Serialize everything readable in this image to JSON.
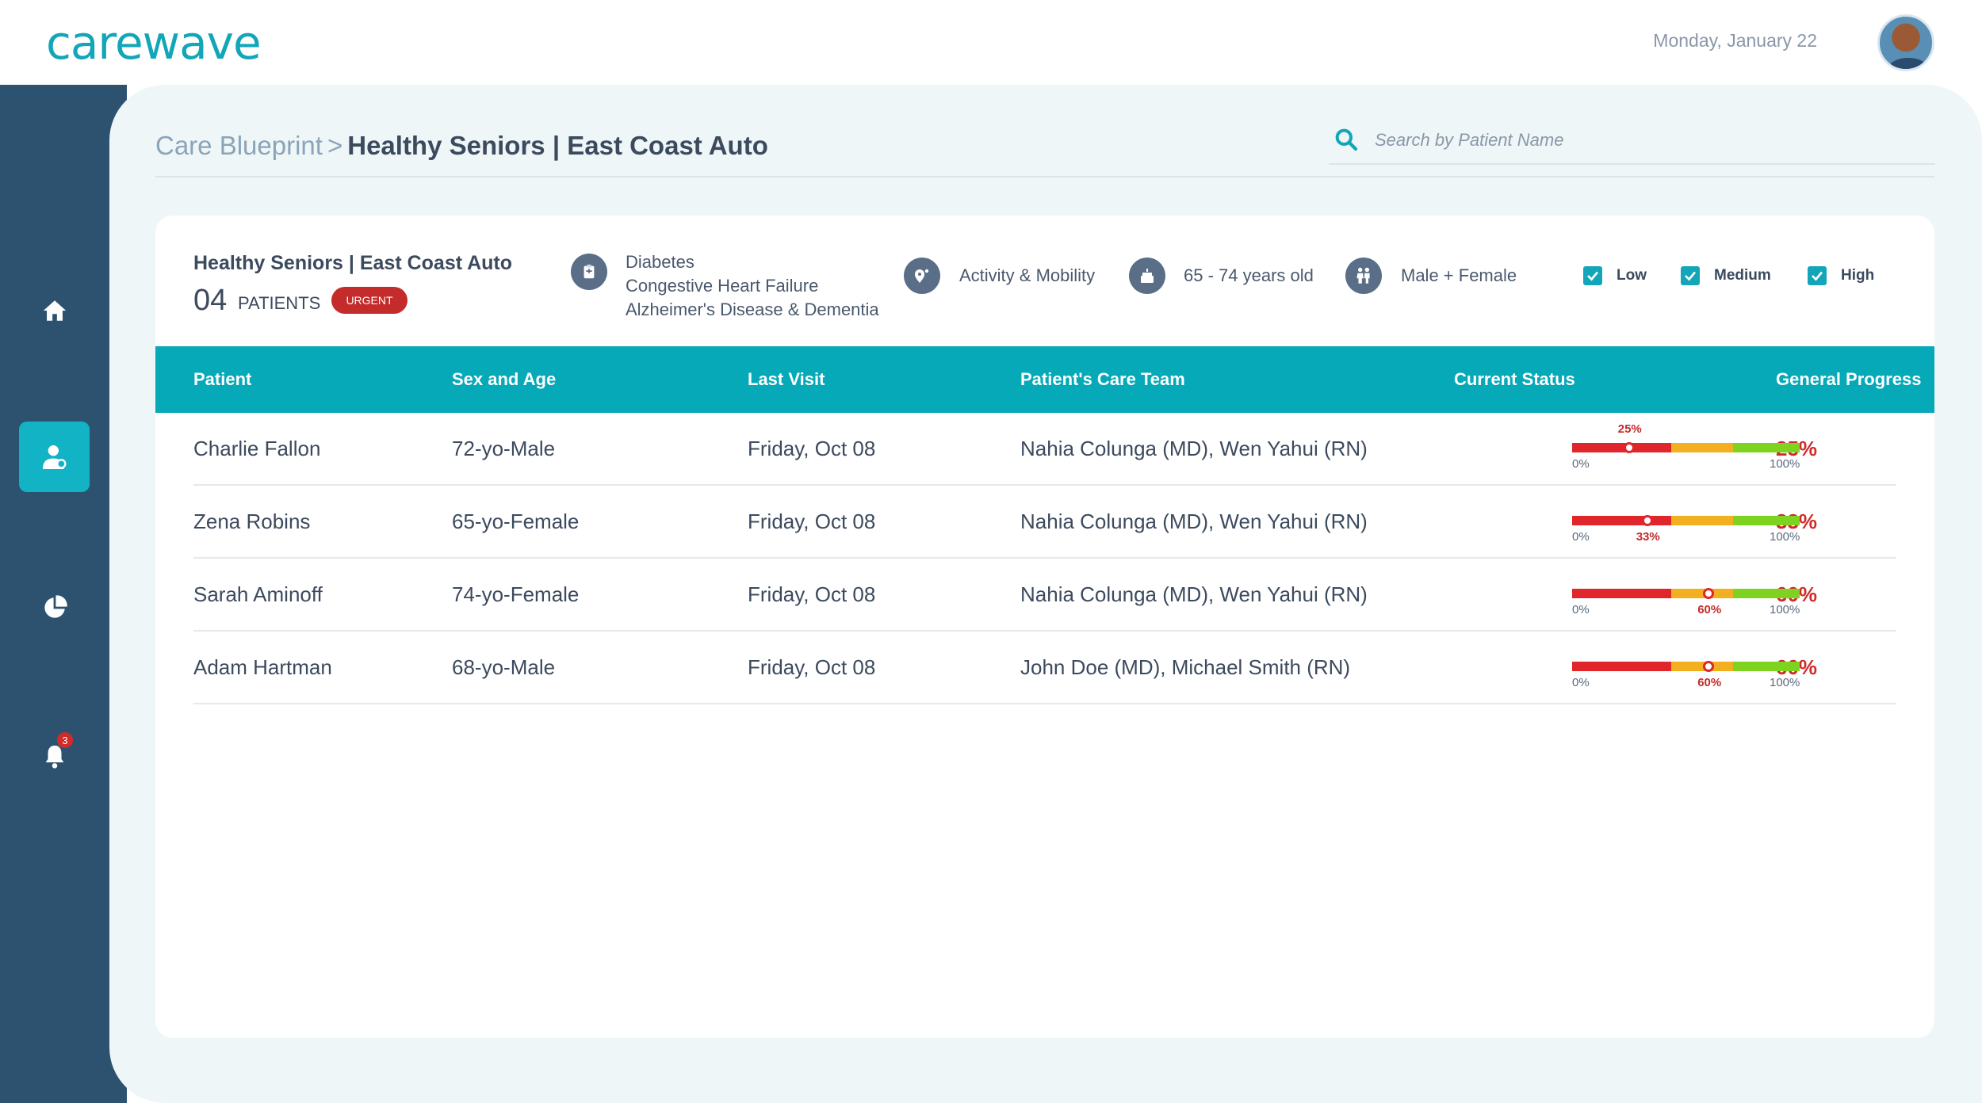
{
  "app": {
    "logo": "carewave",
    "date": "Monday, January 22"
  },
  "sidebar": {
    "items": [
      {
        "name": "home",
        "active": false
      },
      {
        "name": "patients",
        "active": true
      },
      {
        "name": "reports",
        "active": false
      },
      {
        "name": "alerts",
        "active": false,
        "badge": "3"
      }
    ]
  },
  "breadcrumb": {
    "parent": "Care Blueprint",
    "separator": ">",
    "current": "Healthy Seniors | East Coast Auto"
  },
  "search": {
    "placeholder": "Search by Patient Name"
  },
  "summary": {
    "title": "Healthy Seniors | East Coast Auto",
    "count": "04",
    "count_label": "PATIENTS",
    "badge": "URGENT",
    "conditions": [
      "Diabetes",
      "Congestive Heart Failure",
      "Alzheimer's Disease & Dementia"
    ],
    "focus": "Activity & Mobility",
    "age_range": "65 - 74 years old",
    "sex": "Male + Female",
    "filters": [
      {
        "label": "Low",
        "checked": true
      },
      {
        "label": "Medium",
        "checked": true
      },
      {
        "label": "High",
        "checked": true
      }
    ]
  },
  "table": {
    "headers": [
      "Patient",
      "Sex and Age",
      "Last Visit",
      "Patient's Care Team",
      "Current Status",
      "General Progress"
    ],
    "scale_min": "0%",
    "scale_max": "100%",
    "rows": [
      {
        "patient": "Charlie Fallon",
        "sex_age": "72-yo-Male",
        "last_visit": "Friday, Oct 08",
        "care_team": "Nahia Colunga (MD), Wen Yahui (RN)",
        "status_value": 25,
        "status_label": "25%",
        "progress": "25%"
      },
      {
        "patient": "Zena Robins",
        "sex_age": "65-yo-Female",
        "last_visit": "Friday, Oct 08",
        "care_team": "Nahia Colunga (MD), Wen Yahui (RN)",
        "status_value": 33,
        "status_label": "33%",
        "progress": "33%"
      },
      {
        "patient": "Sarah Aminoff",
        "sex_age": "74-yo-Female",
        "last_visit": "Friday, Oct 08",
        "care_team": "Nahia Colunga (MD), Wen Yahui (RN)",
        "status_value": 60,
        "status_label": "60%",
        "progress": "60%"
      },
      {
        "patient": "Adam Hartman",
        "sex_age": "68-yo-Male",
        "last_visit": "Friday, Oct 08",
        "care_team": "John Doe (MD), Michael Smith (RN)",
        "status_value": 60,
        "status_label": "60%",
        "progress": "60%"
      }
    ]
  },
  "colors": {
    "accent": "#12a6b8",
    "sidebar": "#2c5270",
    "urgent": "#c42b2b",
    "low": "#e0262a",
    "medium": "#f2b020",
    "high": "#7ed321"
  }
}
